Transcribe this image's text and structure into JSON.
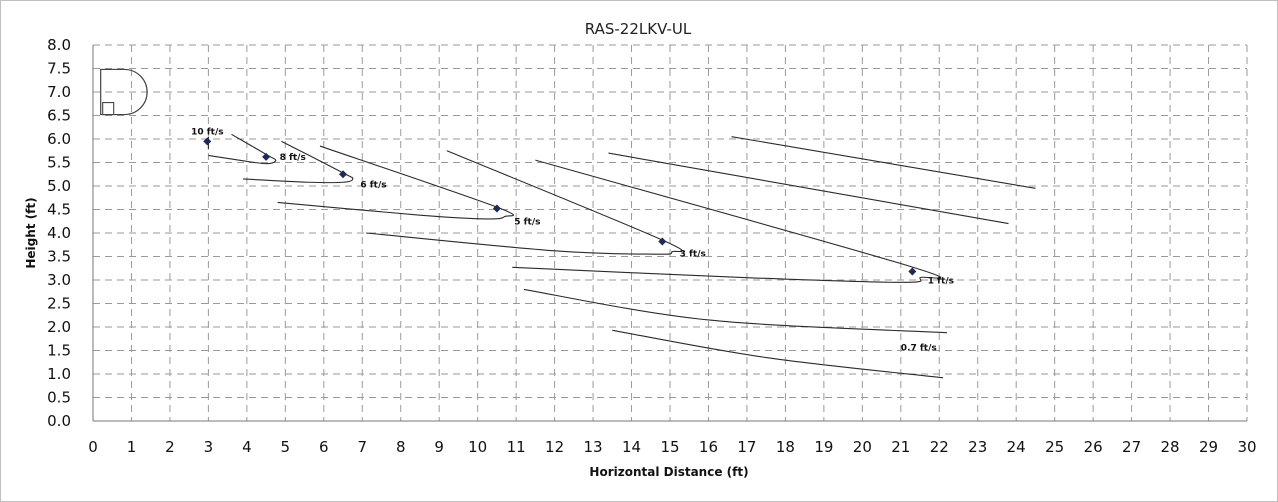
{
  "chart_data": {
    "type": "line",
    "title": "RAS-22LKV-UL",
    "xlabel": "Horizontal Distance (ft)",
    "ylabel": "Height (ft)",
    "xlim": [
      0,
      30
    ],
    "ylim": [
      0,
      8
    ],
    "xticks": [
      "0",
      "1",
      "2",
      "3",
      "4",
      "5",
      "6",
      "7",
      "8",
      "9",
      "10",
      "11",
      "12",
      "13",
      "14",
      "15",
      "16",
      "17",
      "18",
      "19",
      "20",
      "21",
      "22",
      "23",
      "24",
      "25",
      "26",
      "27",
      "28",
      "29",
      "30"
    ],
    "yticks": [
      "0.0",
      "0.5",
      "1.0",
      "1.5",
      "2.0",
      "2.5",
      "3.0",
      "3.5",
      "4.0",
      "4.5",
      "5.0",
      "5.5",
      "6.0",
      "6.5",
      "7.0",
      "7.5",
      "8.0"
    ],
    "grid": true,
    "unit_icon": "air-conditioner-unit-icon",
    "series": [
      {
        "label": "10 ft/s",
        "points": [
          [
            3.0,
            5.78
          ],
          [
            3.0,
            6.05
          ]
        ],
        "marker": [
          2.97,
          5.95
        ]
      },
      {
        "label": "8 ft/s",
        "points": [
          [
            3.0,
            5.65
          ],
          [
            4.2,
            5.5
          ],
          [
            4.6,
            5.48
          ],
          [
            4.75,
            5.55
          ],
          [
            4.55,
            5.65
          ],
          [
            3.6,
            6.1
          ]
        ],
        "marker": [
          4.5,
          5.62
        ]
      },
      {
        "label": "6 ft/s",
        "points": [
          [
            3.9,
            5.15
          ],
          [
            5.6,
            5.08
          ],
          [
            6.5,
            5.08
          ],
          [
            6.75,
            5.15
          ],
          [
            6.5,
            5.28
          ],
          [
            4.9,
            5.95
          ]
        ],
        "marker": [
          6.5,
          5.25
        ]
      },
      {
        "label": "5 ft/s",
        "points": [
          [
            4.8,
            4.65
          ],
          [
            8.5,
            4.38
          ],
          [
            10.2,
            4.3
          ],
          [
            10.7,
            4.35
          ],
          [
            10.5,
            4.55
          ],
          [
            5.9,
            5.85
          ]
        ],
        "marker": [
          10.5,
          4.52
        ]
      },
      {
        "label": "3 ft/s",
        "points": [
          [
            7.1,
            4.0
          ],
          [
            12.0,
            3.62
          ],
          [
            14.6,
            3.55
          ],
          [
            15.05,
            3.6
          ],
          [
            14.8,
            3.85
          ],
          [
            9.2,
            5.75
          ]
        ],
        "marker": [
          14.8,
          3.82
        ]
      },
      {
        "label": "1 ft/s",
        "points": [
          [
            10.9,
            3.27
          ],
          [
            17.0,
            3.05
          ],
          [
            21.0,
            2.95
          ],
          [
            21.5,
            3.05
          ],
          [
            21.2,
            3.3
          ],
          [
            11.5,
            5.55
          ]
        ],
        "marker": [
          21.3,
          3.18
        ]
      },
      {
        "label": "0.7 ft/s",
        "points": [
          [
            11.2,
            2.8
          ],
          [
            16.0,
            2.15
          ],
          [
            22.2,
            1.88
          ]
        ],
        "marker": null
      },
      {
        "label": "",
        "points": [
          [
            13.5,
            1.93
          ],
          [
            17.5,
            1.35
          ],
          [
            22.1,
            0.92
          ]
        ],
        "marker": null
      },
      {
        "label": "",
        "points": [
          [
            13.4,
            5.7
          ],
          [
            23.8,
            4.2
          ]
        ],
        "marker": null
      },
      {
        "label": "",
        "points": [
          [
            16.6,
            6.05
          ],
          [
            24.5,
            4.95
          ]
        ],
        "marker": null
      }
    ],
    "curve_labels": [
      {
        "text": "10 ft/s",
        "x": 2.55,
        "y": 6.1
      },
      {
        "text": "8 ft/s",
        "x": 4.85,
        "y": 5.55
      },
      {
        "text": "6 ft/s",
        "x": 6.95,
        "y": 4.97
      },
      {
        "text": "5 ft/s",
        "x": 10.95,
        "y": 4.18
      },
      {
        "text": "3 ft/s",
        "x": 15.25,
        "y": 3.5
      },
      {
        "text": "1 ft/s",
        "x": 21.7,
        "y": 2.93
      },
      {
        "text": "0.7 ft/s",
        "x": 21.0,
        "y": 1.5
      }
    ]
  }
}
